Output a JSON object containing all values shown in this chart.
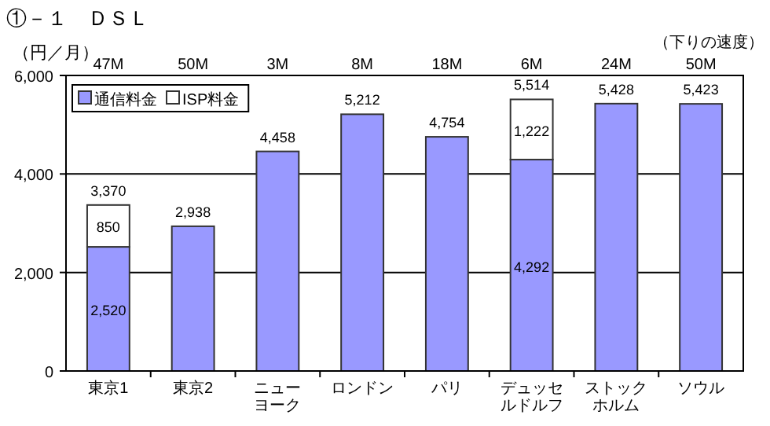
{
  "chart_data": {
    "type": "bar",
    "stacked": true,
    "title": "①－１　ＤＳＬ",
    "ylabel": "（円／月）",
    "categories": [
      "東京1",
      "東京2",
      "ニューヨーク",
      "ロンドン",
      "パリ",
      "デュッセルドルフ",
      "ストックホルム",
      "ソウル"
    ],
    "series": [
      {
        "name": "通信料金",
        "color": "#9999ff",
        "values": [
          2520,
          2938,
          4458,
          5212,
          4754,
          4292,
          5428,
          5423
        ],
        "value_labels": [
          "2,520",
          null,
          null,
          null,
          null,
          "4,292",
          null,
          null
        ]
      },
      {
        "name": "ISP料金",
        "color": "#ffffff",
        "values": [
          850,
          null,
          null,
          null,
          null,
          1222,
          null,
          null
        ],
        "value_labels": [
          "850",
          null,
          null,
          null,
          null,
          "1,222",
          null,
          null
        ]
      }
    ],
    "totals": [
      "3,370",
      "2,938",
      "4,458",
      "5,212",
      "4,754",
      "5,514",
      "5,428",
      "5,423"
    ],
    "ylim": [
      0,
      6000
    ],
    "yticks": [
      {
        "value": 0,
        "label": "0"
      },
      {
        "value": 2000,
        "label": "2,000"
      },
      {
        "value": 4000,
        "label": "4,000"
      },
      {
        "value": 6000,
        "label": "6,000"
      }
    ],
    "grid": "y",
    "legend": "top left",
    "annotations": [
      "（下りの速度）",
      "47M",
      "50M",
      "3M",
      "8M",
      "18M",
      "6M",
      "24M",
      "50M"
    ]
  }
}
